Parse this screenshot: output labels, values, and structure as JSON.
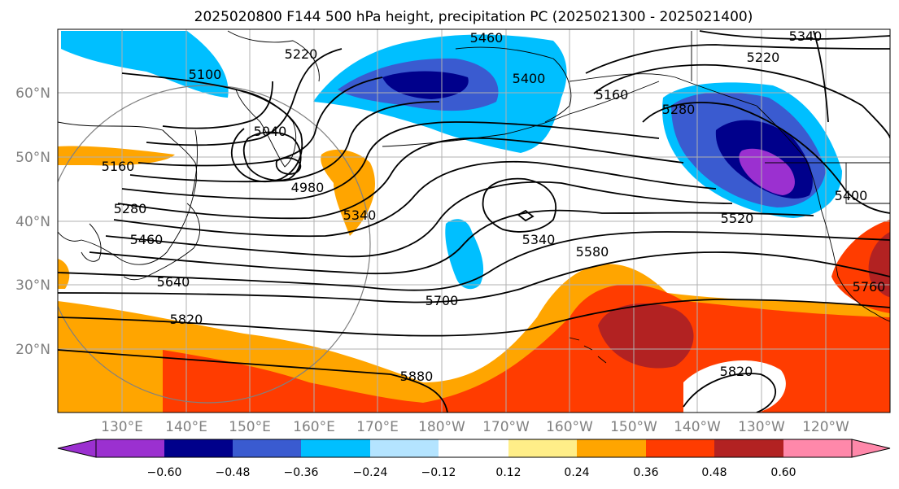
{
  "title": "2025020800 F144 500 hPa height, precipitation PC (2025021300 - 2025021400)",
  "map": {
    "lon_labels": [
      "130°E",
      "140°E",
      "150°E",
      "160°E",
      "170°E",
      "180°W",
      "170°W",
      "160°W",
      "150°W",
      "140°W",
      "130°W",
      "120°W"
    ],
    "lat_labels": [
      "60°N",
      "50°N",
      "40°N",
      "30°N",
      "20°N"
    ],
    "contour_labels": [
      "5460",
      "5340",
      "5220",
      "5100",
      "5040",
      "4980",
      "5160",
      "5280",
      "5460",
      "5640",
      "5820",
      "5340",
      "5700",
      "5880",
      "5340",
      "5580",
      "5280",
      "5400",
      "5220",
      "5160",
      "5400",
      "5520",
      "5760",
      "5820"
    ],
    "contour_line_color": "#000000",
    "graticule_color": "#b0b0b0",
    "coastline_color": "#000000"
  },
  "colorbar": {
    "colors": [
      "#9b30d0",
      "#00008b",
      "#3a5bd0",
      "#00bfff",
      "#b4e4ff",
      "#ffffff",
      "#ffee88",
      "#ffa500",
      "#ff3c00",
      "#b22222",
      "#ff88aa"
    ],
    "tick_labels": [
      "−0.60",
      "−0.48",
      "−0.36",
      "−0.24",
      "−0.12",
      "0.12",
      "0.24",
      "0.36",
      "0.48",
      "0.60"
    ]
  },
  "colors": {
    "neg_extreme": "#9b30d0",
    "neg_strong": "#00008b",
    "neg_mod": "#3a5bd0",
    "neg_weak": "#00bfff",
    "pos_weak": "#ffee88",
    "pos_mod": "#ffa500",
    "pos_strong": "#ff3c00",
    "pos_extreme": "#b22222"
  }
}
